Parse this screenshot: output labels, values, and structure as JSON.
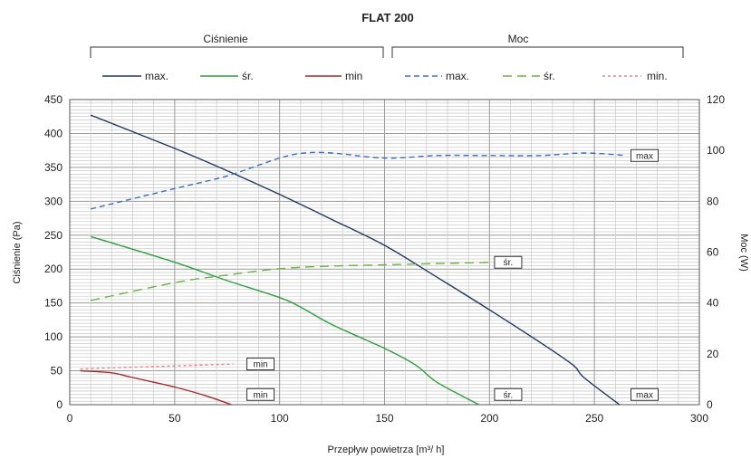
{
  "chart_data": {
    "type": "line",
    "title": "FLAT 200",
    "xlabel": "Przepływ powietrza [m³/ h]",
    "ylabel": "Ciśnienie (Pa)",
    "y2label": "Moc (W)",
    "xlim": [
      0,
      300
    ],
    "ylim": [
      0,
      450
    ],
    "y2lim": [
      0,
      120
    ],
    "xticks": [
      0,
      50,
      100,
      150,
      200,
      250,
      300
    ],
    "yticks": [
      0,
      50,
      100,
      150,
      200,
      250,
      300,
      350,
      400,
      450
    ],
    "y2ticks": [
      0,
      20,
      40,
      60,
      80,
      100,
      120
    ],
    "grid": true,
    "legend_groups": [
      {
        "label": "Ciśnienie",
        "entries": [
          "max.",
          "śr.",
          "min"
        ]
      },
      {
        "label": "Moc",
        "entries": [
          "max.",
          "śr.",
          "min."
        ]
      }
    ],
    "colors": {
      "max": "#1f3864",
      "sr": "#2e9e3e",
      "min": "#a52a2a",
      "max_power": "#3a6fc4",
      "sr_power": "#6cb33f",
      "min_power": "#f08080"
    },
    "series": [
      {
        "name": "max.",
        "group": "Ciśnienie",
        "axis": "left",
        "color": "#1f3864",
        "dash": "solid",
        "x": [
          10,
          50,
          75,
          100,
          125,
          150,
          175,
          200,
          225,
          240,
          245,
          262
        ],
        "y": [
          427,
          378,
          345,
          310,
          273,
          235,
          188,
          140,
          90,
          58,
          40,
          0
        ]
      },
      {
        "name": "śr.",
        "group": "Ciśnienie",
        "axis": "left",
        "color": "#2e9e3e",
        "dash": "solid",
        "x": [
          10,
          50,
          75,
          100,
          110,
          125,
          150,
          165,
          175,
          195
        ],
        "y": [
          248,
          210,
          183,
          158,
          144,
          118,
          83,
          58,
          33,
          0
        ]
      },
      {
        "name": "min",
        "group": "Ciśnienie",
        "axis": "left",
        "color": "#a52a2a",
        "dash": "solid",
        "x": [
          5,
          20,
          30,
          50,
          65,
          77
        ],
        "y": [
          50,
          47,
          40,
          26,
          13,
          0
        ]
      },
      {
        "name": "max.",
        "group": "Moc",
        "axis": "right",
        "color": "#3a6fc4",
        "dash": "6,4",
        "x": [
          10,
          50,
          75,
          100,
          112,
          125,
          150,
          175,
          200,
          225,
          245,
          265
        ],
        "y": [
          77,
          85,
          90,
          97,
          99,
          99,
          97,
          98,
          98,
          98,
          99,
          98
        ]
      },
      {
        "name": "śr.",
        "group": "Moc",
        "axis": "right",
        "color": "#6cb33f",
        "dash": "10,6",
        "x": [
          10,
          50,
          75,
          100,
          125,
          150,
          175,
          200
        ],
        "y": [
          41,
          48,
          51,
          53.5,
          54.5,
          55,
          55.5,
          56
        ]
      },
      {
        "name": "min.",
        "group": "Moc",
        "axis": "right",
        "color": "#f08080",
        "dash": "3,3",
        "x": [
          5,
          20,
          40,
          60,
          78
        ],
        "y": [
          14,
          14.5,
          15,
          15.5,
          16
        ]
      }
    ],
    "annotations": [
      {
        "text": "max",
        "axis": "right",
        "x": 270,
        "y": 98
      },
      {
        "text": "śr.",
        "axis": "right",
        "x": 205,
        "y": 56
      },
      {
        "text": "min",
        "axis": "right",
        "x": 87,
        "y": 16
      },
      {
        "text": "max",
        "axis": "left",
        "x": 270,
        "y": 15
      },
      {
        "text": "śr.",
        "axis": "left",
        "x": 205,
        "y": 15
      },
      {
        "text": "min",
        "axis": "left",
        "x": 87,
        "y": 15
      }
    ]
  }
}
